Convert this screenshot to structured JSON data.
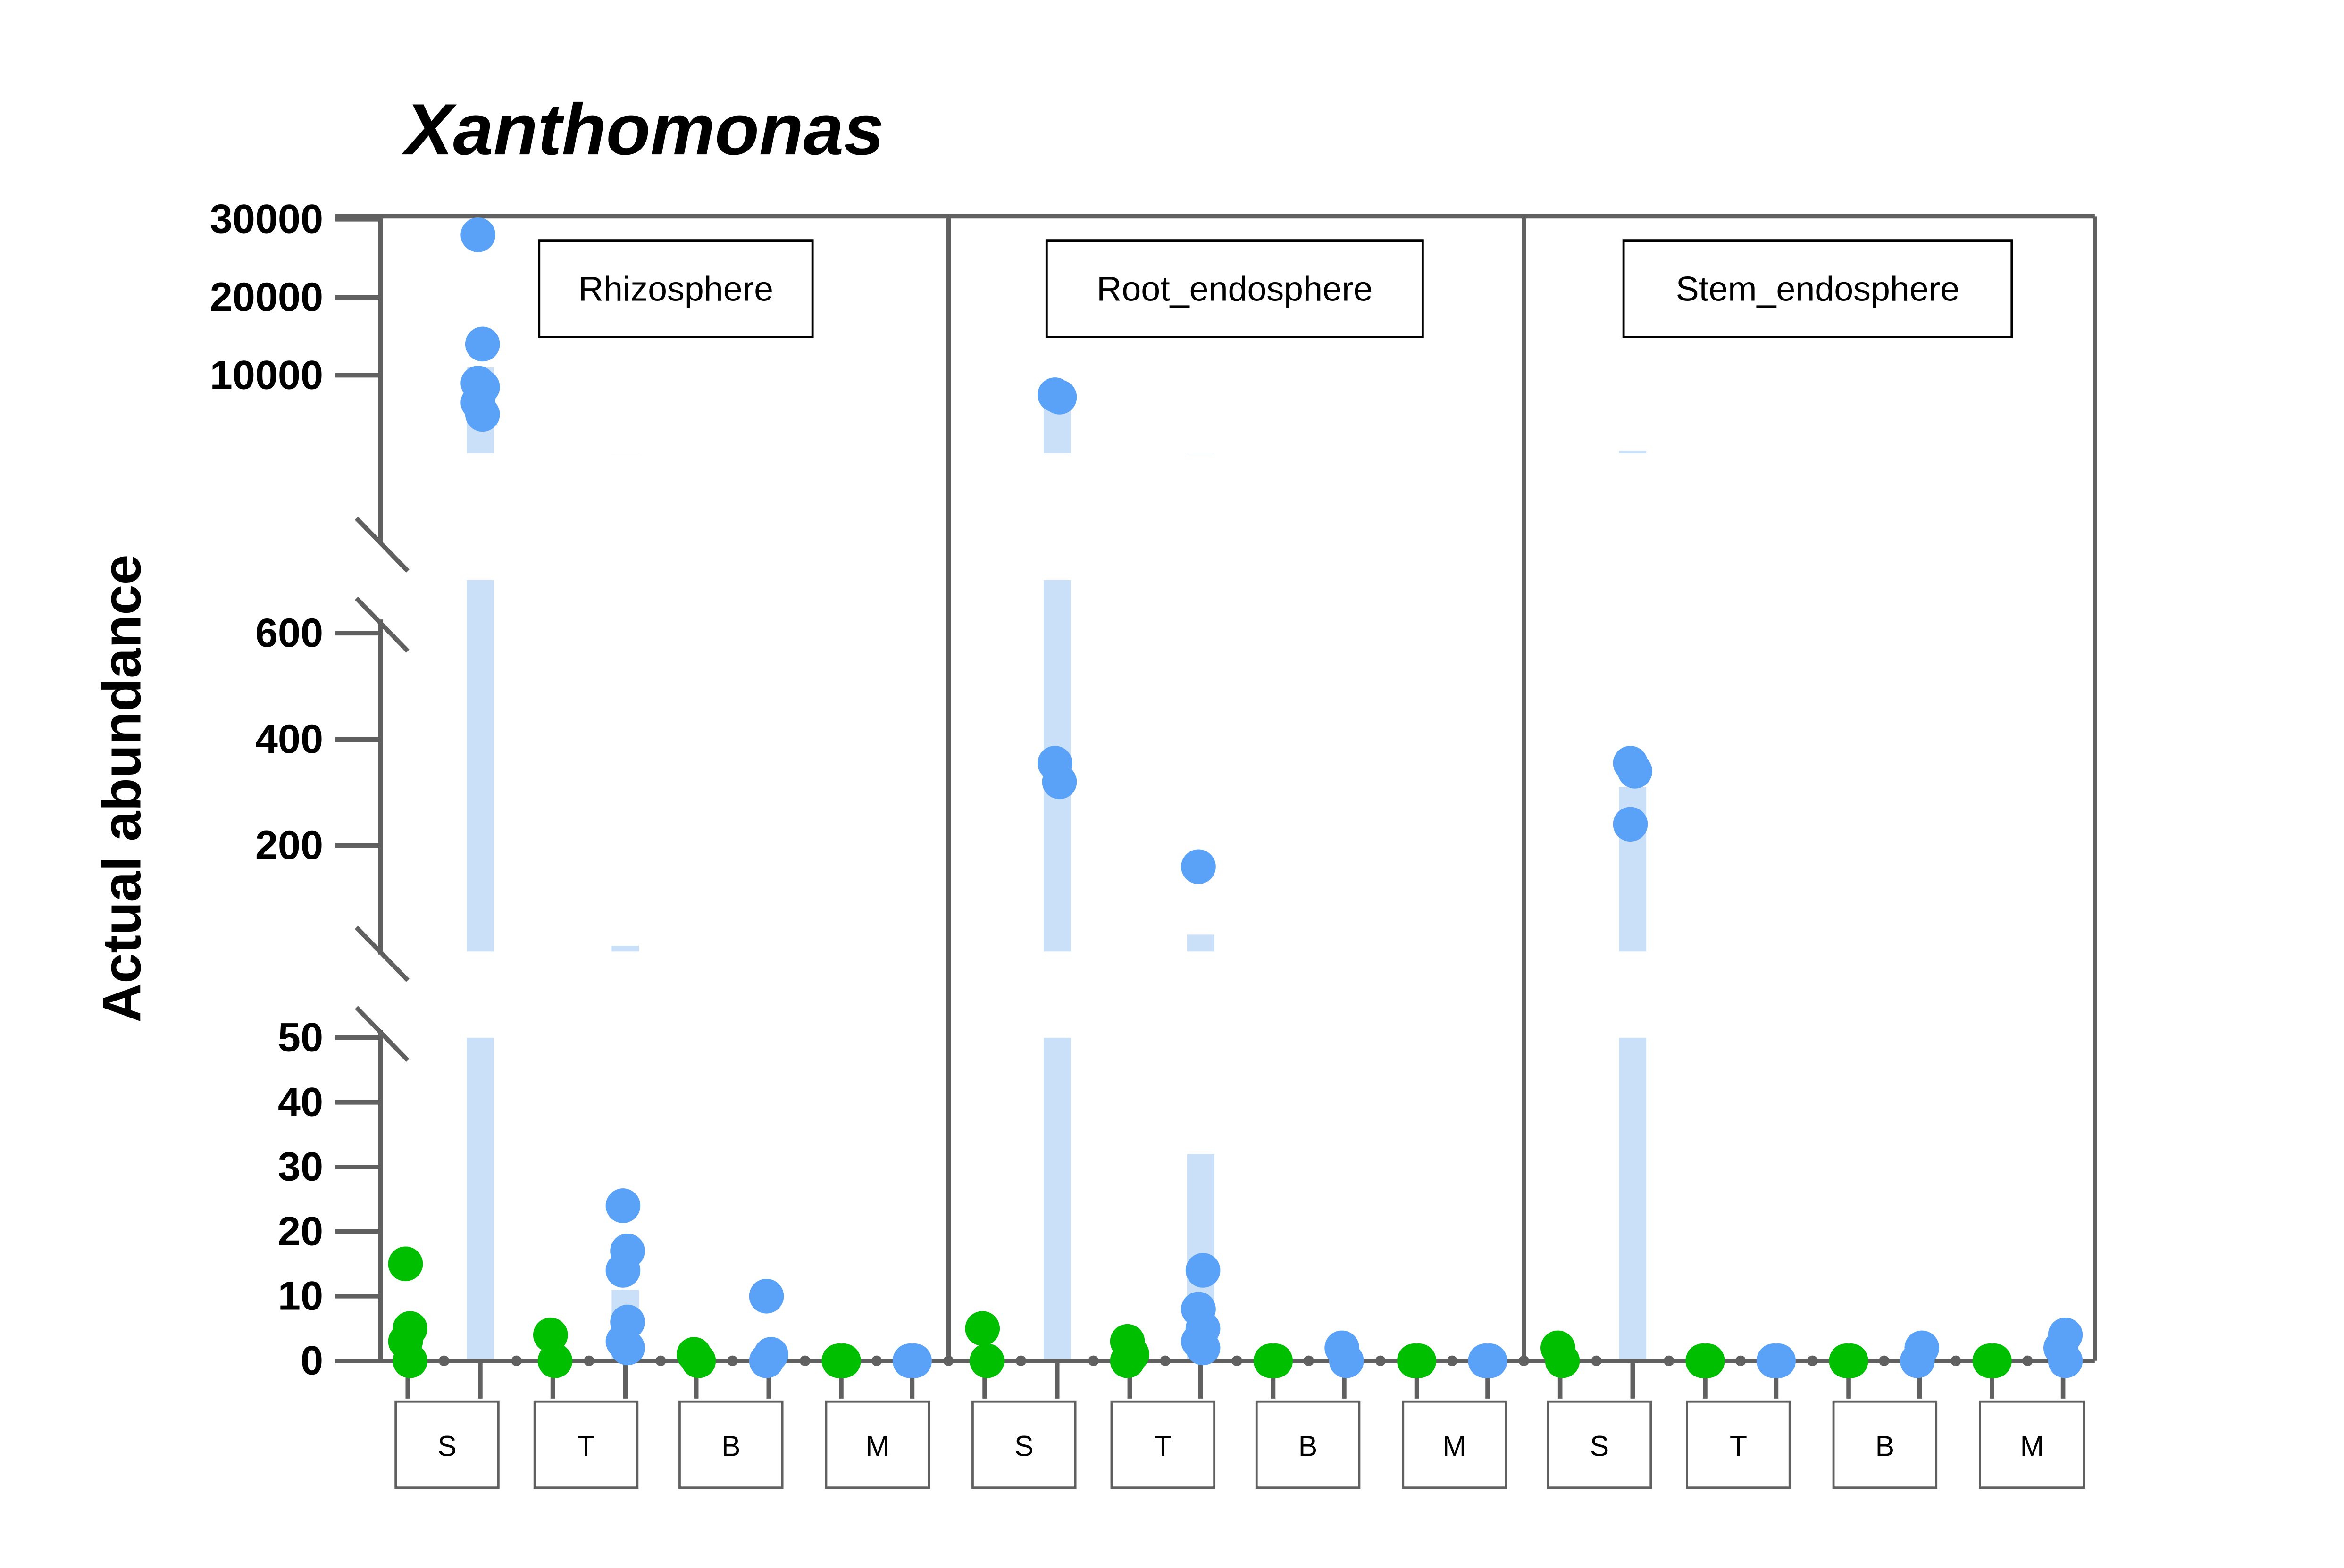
{
  "chart_data": {
    "type": "scatter",
    "title": "Xanthomonas",
    "ylabel": "Actual abundance",
    "xlabel": "",
    "y_axis_broken": true,
    "y_segments": [
      {
        "range": [
          0,
          50
        ],
        "ticks": [
          0,
          10,
          20,
          30,
          40,
          50
        ]
      },
      {
        "range": [
          0,
          700
        ],
        "ticks": [
          200,
          400,
          600
        ]
      },
      {
        "range": [
          0,
          30000
        ],
        "ticks": [
          10000,
          20000,
          30000
        ]
      }
    ],
    "panels": [
      "Rhizosphere",
      "Root_endosphere",
      "Stem_endosphere"
    ],
    "categories": [
      "S",
      "T",
      "B",
      "M"
    ],
    "colors": {
      "green": "#00bf00",
      "blue": "#5aa2f7",
      "band": "#cadff8",
      "axis": "#606060"
    },
    "series": [
      {
        "color": "green",
        "points": [
          [
            [
              0,
              15
            ],
            [
              0,
              5
            ],
            [
              0,
              3
            ],
            [
              0,
              0
            ],
            [
              1,
              4
            ],
            [
              1,
              0
            ],
            [
              2,
              1
            ],
            [
              2,
              0
            ],
            [
              3,
              0
            ],
            [
              3,
              0
            ]
          ],
          [
            [
              0,
              5
            ],
            [
              0,
              0
            ],
            [
              1,
              3
            ],
            [
              1,
              1
            ],
            [
              1,
              0
            ],
            [
              2,
              0
            ],
            [
              2,
              0
            ],
            [
              3,
              0
            ],
            [
              3,
              0
            ]
          ],
          [
            [
              0,
              2
            ],
            [
              0,
              0
            ],
            [
              1,
              0
            ],
            [
              1,
              0
            ],
            [
              2,
              0
            ],
            [
              2,
              0
            ],
            [
              3,
              0
            ],
            [
              3,
              0
            ]
          ]
        ]
      },
      {
        "color": "blue",
        "points": [
          [
            [
              0,
              28000
            ],
            [
              0,
              14000
            ],
            [
              0,
              9000
            ],
            [
              0,
              8500
            ],
            [
              0,
              6500
            ],
            [
              0,
              5000
            ],
            [
              1,
              24
            ],
            [
              1,
              17
            ],
            [
              1,
              14
            ],
            [
              1,
              6
            ],
            [
              1,
              3
            ],
            [
              1,
              2
            ],
            [
              2,
              10
            ],
            [
              2,
              1
            ],
            [
              2,
              0
            ],
            [
              3,
              0
            ],
            [
              3,
              0
            ]
          ],
          [
            [
              0,
              7500
            ],
            [
              0,
              7200
            ],
            [
              0,
              355
            ],
            [
              0,
              320
            ],
            [
              1,
              160
            ],
            [
              1,
              14
            ],
            [
              1,
              8
            ],
            [
              1,
              5
            ],
            [
              1,
              3
            ],
            [
              1,
              2
            ],
            [
              2,
              2
            ],
            [
              2,
              0
            ],
            [
              3,
              0
            ],
            [
              3,
              0
            ]
          ],
          [
            [
              0,
              355
            ],
            [
              0,
              340
            ],
            [
              0,
              240
            ],
            [
              1,
              0
            ],
            [
              1,
              0
            ],
            [
              2,
              2
            ],
            [
              2,
              0
            ],
            [
              3,
              4
            ],
            [
              3,
              2
            ],
            [
              3,
              0
            ]
          ]
        ]
      }
    ],
    "bands": [
      [
        {
          "category": 0,
          "color": "blue",
          "low": 0,
          "high": 11000
        },
        {
          "category": 1,
          "color": "blue",
          "low": 0,
          "high": 11
        }
      ],
      [
        {
          "category": 0,
          "color": "blue",
          "low": 0,
          "high": 7500
        },
        {
          "category": 1,
          "color": "blue",
          "low": 0,
          "high": 32
        }
      ],
      [
        {
          "category": 0,
          "color": "blue",
          "low": 0,
          "high": 310
        }
      ]
    ]
  }
}
